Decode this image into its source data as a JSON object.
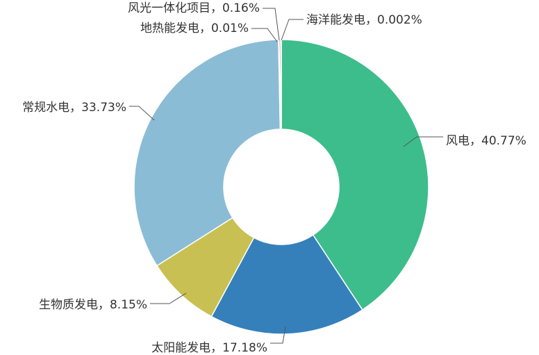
{
  "chart_data": {
    "type": "pie",
    "donut": true,
    "title": "",
    "slices": [
      {
        "label": "风电，40.77%",
        "name": "风电",
        "value": 40.77,
        "color": "#3dbd8c"
      },
      {
        "label": "太阳能发电，17.18%",
        "name": "太阳能发电",
        "value": 17.18,
        "color": "#3580bb"
      },
      {
        "label": "生物质发电，8.15%",
        "name": "生物质发电",
        "value": 8.15,
        "color": "#c9c053"
      },
      {
        "label": "常规水电，33.73%",
        "name": "常规水电",
        "value": 33.73,
        "color": "#8bbcd5"
      },
      {
        "label": "地热能发电，0.01%",
        "name": "地热能发电",
        "value": 0.01,
        "color": "#e8a23c"
      },
      {
        "label": "风光一体化项目，0.16%",
        "name": "风光一体化项目",
        "value": 0.16,
        "color": "#c9454a"
      },
      {
        "label": "海洋能发电，0.002%",
        "name": "海洋能发电",
        "value": 0.002,
        "color": "#6a4fa0"
      }
    ],
    "legend": "none"
  }
}
